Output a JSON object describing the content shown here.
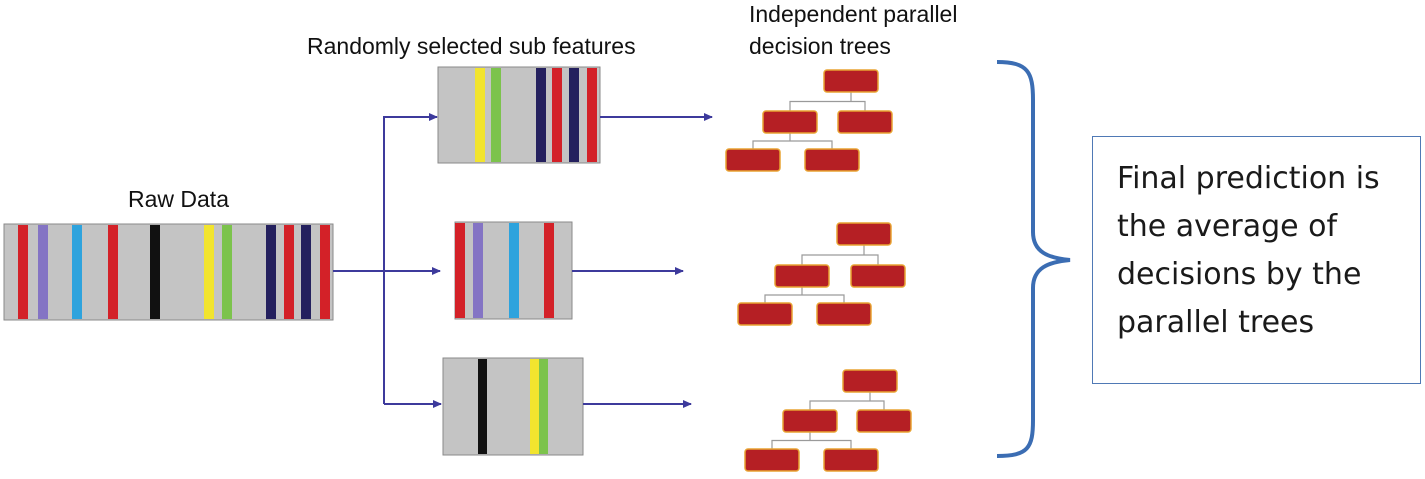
{
  "labels": {
    "raw_data": "Raw Data",
    "sub_features": "Randomly selected sub features",
    "trees_line1": "Independent parallel",
    "trees_line2": "decision trees",
    "final": "Final prediction is the average of decisions by the parallel trees"
  },
  "colors": {
    "strip_bg": "#c4c4c4",
    "node_fill": "#b51f24",
    "node_border": "#e8a332",
    "arrow": "#3d3a9c",
    "brace": "#3b6db3",
    "box_border": "#4f79b5"
  },
  "strips": [
    {
      "name": "raw-data-strip",
      "colors": [
        "red",
        "purple",
        "blue",
        "red",
        "black",
        "yellow",
        "green",
        "navy",
        "red",
        "navy",
        "red"
      ]
    },
    {
      "name": "subset-strip-1",
      "colors": [
        "yellow",
        "green",
        "navy",
        "red",
        "navy",
        "red"
      ]
    },
    {
      "name": "subset-strip-2",
      "colors": [
        "red",
        "purple",
        "blue",
        "red"
      ]
    },
    {
      "name": "subset-strip-3",
      "colors": [
        "black",
        "yellow",
        "green"
      ]
    }
  ],
  "trees": [
    {
      "name": "decision-tree-1",
      "nodes": 5
    },
    {
      "name": "decision-tree-2",
      "nodes": 5
    },
    {
      "name": "decision-tree-3",
      "nodes": 5
    }
  ]
}
